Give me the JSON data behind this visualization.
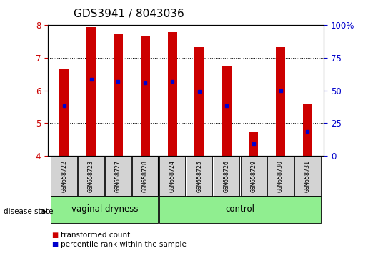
{
  "title": "GDS3941 / 8043036",
  "samples": [
    "GSM658722",
    "GSM658723",
    "GSM658727",
    "GSM658728",
    "GSM658724",
    "GSM658725",
    "GSM658726",
    "GSM658729",
    "GSM658730",
    "GSM658731"
  ],
  "bar_tops": [
    6.67,
    7.95,
    7.73,
    7.68,
    7.78,
    7.33,
    6.73,
    4.75,
    7.33,
    5.57
  ],
  "bar_bottoms": [
    4.0,
    4.0,
    4.0,
    4.0,
    4.0,
    4.0,
    4.0,
    4.0,
    4.0,
    4.0
  ],
  "blue_marks": [
    5.54,
    6.35,
    6.27,
    6.23,
    6.27,
    5.97,
    5.54,
    4.37,
    6.0,
    4.75
  ],
  "group1_count": 4,
  "group1_label": "vaginal dryness",
  "group2_label": "control",
  "ylim_left": [
    4.0,
    8.0
  ],
  "yticks_left": [
    4,
    5,
    6,
    7,
    8
  ],
  "yticks_right": [
    0,
    25,
    50,
    75,
    100
  ],
  "bar_color": "#cc0000",
  "blue_color": "#0000cc",
  "green_bg": "#90ee90",
  "gray_bg": "#d3d3d3",
  "label_transformed": "transformed count",
  "label_percentile": "percentile rank within the sample",
  "disease_state_label": "disease state",
  "tick_color_left": "#cc0000",
  "tick_color_right": "#0000cc",
  "title_fontsize": 11,
  "bar_width": 0.35
}
